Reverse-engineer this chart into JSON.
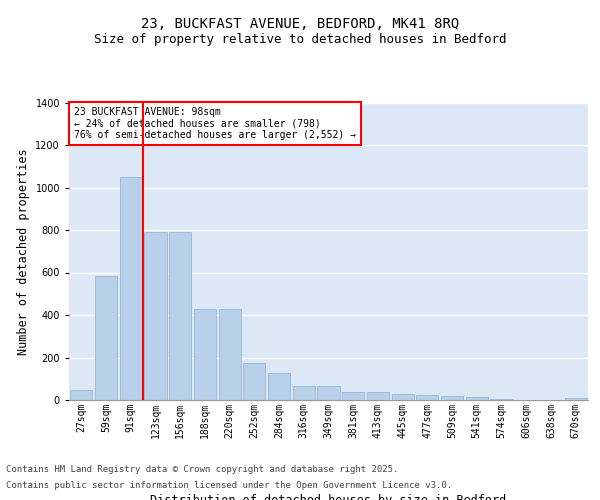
{
  "title": "23, BUCKFAST AVENUE, BEDFORD, MK41 8RQ",
  "subtitle": "Size of property relative to detached houses in Bedford",
  "xlabel": "Distribution of detached houses by size in Bedford",
  "ylabel": "Number of detached properties",
  "categories": [
    "27sqm",
    "59sqm",
    "91sqm",
    "123sqm",
    "156sqm",
    "188sqm",
    "220sqm",
    "252sqm",
    "284sqm",
    "316sqm",
    "349sqm",
    "381sqm",
    "413sqm",
    "445sqm",
    "477sqm",
    "509sqm",
    "541sqm",
    "574sqm",
    "606sqm",
    "638sqm",
    "670sqm"
  ],
  "values": [
    45,
    585,
    1050,
    790,
    790,
    430,
    430,
    175,
    125,
    65,
    65,
    40,
    40,
    30,
    25,
    20,
    12,
    5,
    0,
    0,
    10
  ],
  "bar_color": "#b8d0ea",
  "bar_edge_color": "#8ab0d0",
  "background_color": "#dce8f5",
  "grid_color": "#ffffff",
  "fig_background": "#ffffff",
  "vline_x": 2.5,
  "vline_color": "red",
  "annotation_title": "23 BUCKFAST AVENUE: 98sqm",
  "annotation_line1": "← 24% of detached houses are smaller (798)",
  "annotation_line2": "76% of semi-detached houses are larger (2,552) →",
  "annotation_box_color": "red",
  "ylim": [
    0,
    1400
  ],
  "yticks": [
    0,
    200,
    400,
    600,
    800,
    1000,
    1200,
    1400
  ],
  "footer_line1": "Contains HM Land Registry data © Crown copyright and database right 2025.",
  "footer_line2": "Contains public sector information licensed under the Open Government Licence v3.0.",
  "title_fontsize": 10,
  "subtitle_fontsize": 9,
  "axis_label_fontsize": 8.5,
  "tick_fontsize": 7,
  "annotation_fontsize": 7,
  "footer_fontsize": 6.5
}
